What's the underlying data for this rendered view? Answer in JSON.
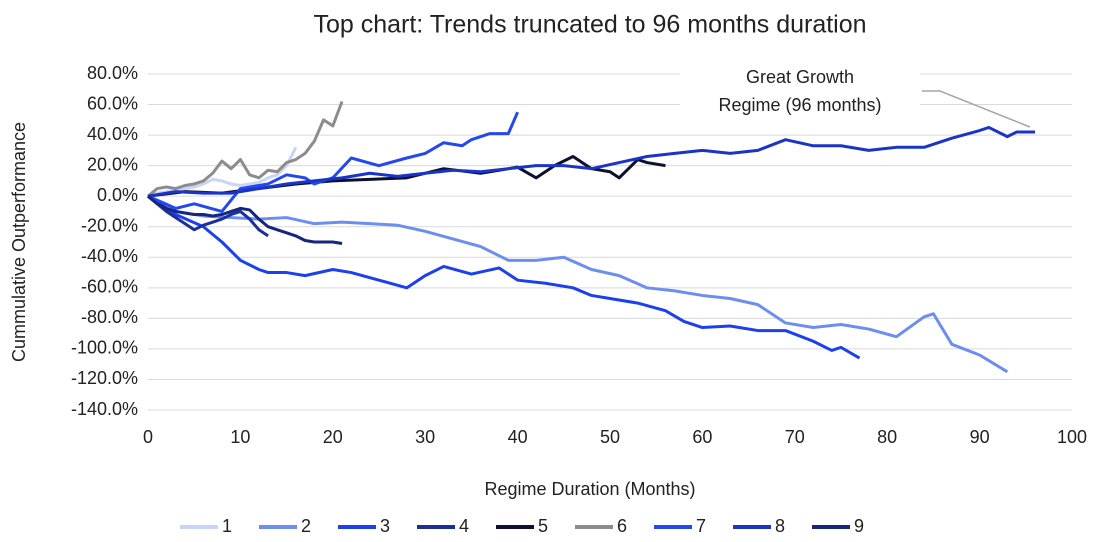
{
  "chart_data": {
    "type": "line",
    "title": "Top chart: Trends truncated to 96 months duration",
    "x_label": "Regime Duration (Months)",
    "y_label": "Cummulative Outperformance",
    "annotation": [
      "Great Growth",
      "Regime (96 months)"
    ],
    "xlim": [
      0,
      100
    ],
    "xticks": [
      0,
      10,
      20,
      30,
      40,
      50,
      60,
      70,
      80,
      90,
      100
    ],
    "ylim": [
      -140,
      80
    ],
    "yticks": [
      {
        "value": 80,
        "label": "80.0%"
      },
      {
        "value": 60,
        "label": "60.0%"
      },
      {
        "value": 40,
        "label": "40.0%"
      },
      {
        "value": 20,
        "label": "20.0%"
      },
      {
        "value": 0,
        "label": "0.0%"
      },
      {
        "value": -20,
        "label": "-20.0%"
      },
      {
        "value": -40,
        "label": "-40.0%"
      },
      {
        "value": -60,
        "label": "-60.0%"
      },
      {
        "value": -80,
        "label": "-80.0%"
      },
      {
        "value": -100,
        "label": "-100.0%"
      },
      {
        "value": -120,
        "label": "-120.0%"
      },
      {
        "value": -140,
        "label": "-140.0%"
      }
    ],
    "grid": true,
    "legend": "bottom",
    "series": [
      {
        "name": "1",
        "color": "#c9d5f7",
        "x": [
          0,
          1,
          2,
          3,
          4,
          5,
          6,
          7,
          8,
          9,
          10,
          11,
          12,
          13,
          14,
          15,
          16
        ],
        "values": [
          0,
          2,
          3,
          4,
          5,
          6,
          8,
          11,
          10,
          8,
          7,
          8,
          9,
          12,
          14,
          20,
          32
        ]
      },
      {
        "name": "2",
        "color": "#6c8ef0",
        "x": [
          0,
          3,
          6,
          9,
          12,
          15,
          18,
          21,
          24,
          27,
          30,
          33,
          36,
          39,
          42,
          45,
          48,
          51,
          54,
          57,
          60,
          63,
          66,
          69,
          72,
          75,
          78,
          81,
          84,
          85,
          87,
          90,
          93
        ],
        "values": [
          0,
          -10,
          -13,
          -14,
          -15,
          -14,
          -18,
          -17,
          -18,
          -19,
          -23,
          -28,
          -33,
          -42,
          -42,
          -40,
          -48,
          -52,
          -60,
          -62,
          -65,
          -67,
          -71,
          -83,
          -86,
          -84,
          -87,
          -92,
          -79,
          -77,
          -97,
          -104,
          -115
        ]
      },
      {
        "name": "3",
        "color": "#1c3ff0",
        "x": [
          0,
          3,
          6,
          8,
          10,
          12,
          13,
          15,
          17,
          20,
          22,
          25,
          28,
          30,
          32,
          35,
          38,
          40,
          43,
          46,
          48,
          50,
          53,
          56,
          58,
          60,
          63,
          66,
          69,
          72,
          74,
          75,
          77
        ],
        "values": [
          0,
          -12,
          -20,
          -30,
          -42,
          -48,
          -50,
          -50,
          -52,
          -48,
          -50,
          -55,
          -60,
          -52,
          -46,
          -51,
          -47,
          -55,
          -57,
          -60,
          -65,
          -67,
          -70,
          -75,
          -82,
          -86,
          -85,
          -88,
          -88,
          -95,
          -101,
          -99,
          -106
        ]
      },
      {
        "name": "4",
        "color": "#1c2e9c",
        "x": [
          0,
          1,
          2,
          3,
          4,
          5,
          6,
          7,
          8,
          9,
          10,
          11,
          12,
          13
        ],
        "values": [
          0,
          -5,
          -10,
          -14,
          -18,
          -22,
          -19,
          -17,
          -15,
          -12,
          -10,
          -15,
          -22,
          -26
        ]
      },
      {
        "name": "5",
        "color": "#0d1030",
        "x": [
          0,
          4,
          8,
          12,
          16,
          20,
          24,
          28,
          32,
          36,
          40,
          42,
          44,
          46,
          48,
          50,
          51,
          53,
          54,
          56
        ],
        "values": [
          0,
          3,
          2,
          5,
          8,
          10,
          11,
          12,
          18,
          15,
          19,
          12,
          20,
          26,
          18,
          16,
          12,
          24,
          22,
          20
        ]
      },
      {
        "name": "6",
        "color": "#8c8c8c",
        "x": [
          0,
          1,
          2,
          3,
          4,
          5,
          6,
          7,
          8,
          9,
          10,
          11,
          12,
          13,
          14,
          15,
          16,
          17,
          18,
          19,
          20,
          21
        ],
        "values": [
          0,
          5,
          6,
          5,
          7,
          8,
          10,
          15,
          23,
          18,
          24,
          14,
          12,
          17,
          16,
          22,
          24,
          28,
          36,
          50,
          46,
          62
        ]
      },
      {
        "name": "7",
        "color": "#2448f0",
        "x": [
          0,
          3,
          5,
          8,
          10,
          13,
          15,
          17,
          18,
          20,
          22,
          25,
          28,
          30,
          32,
          34,
          35,
          37,
          39,
          40
        ],
        "values": [
          0,
          -8,
          -5,
          -10,
          5,
          8,
          14,
          12,
          8,
          12,
          25,
          20,
          25,
          28,
          35,
          33,
          37,
          41,
          41,
          55
        ]
      },
      {
        "name": "8",
        "color": "#1a34c8",
        "x": [
          0,
          3,
          6,
          9,
          12,
          15,
          18,
          21,
          24,
          27,
          30,
          33,
          36,
          39,
          42,
          45,
          48,
          51,
          54,
          57,
          60,
          63,
          66,
          69,
          72,
          75,
          78,
          81,
          84,
          87,
          90,
          91,
          93,
          94,
          96
        ],
        "values": [
          0,
          3,
          2,
          2,
          5,
          8,
          10,
          12,
          15,
          13,
          15,
          17,
          16,
          18,
          20,
          20,
          18,
          22,
          26,
          28,
          30,
          28,
          30,
          37,
          33,
          33,
          30,
          32,
          32,
          38,
          43,
          45,
          39,
          42,
          42
        ]
      },
      {
        "name": "9",
        "color": "#16267e",
        "x": [
          0,
          1,
          2,
          3,
          4,
          5,
          6,
          7,
          8,
          9,
          10,
          11,
          12,
          13,
          14,
          15,
          16,
          17,
          18,
          19,
          20,
          21
        ],
        "values": [
          0,
          -5,
          -8,
          -10,
          -11,
          -12,
          -12,
          -13,
          -12,
          -10,
          -8,
          -9,
          -15,
          -20,
          -22,
          -24,
          -26,
          -29,
          -30,
          -30,
          -30,
          -31
        ]
      }
    ]
  }
}
